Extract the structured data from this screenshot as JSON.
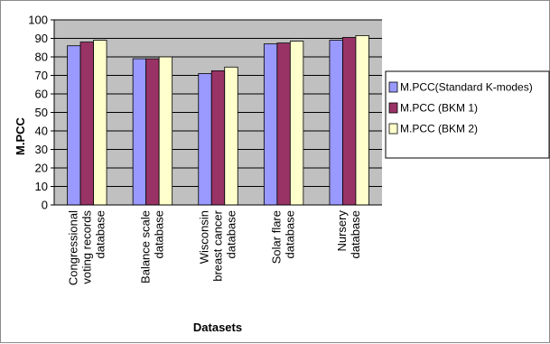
{
  "chart_data": {
    "type": "bar",
    "title": "",
    "xlabel": "Datasets",
    "ylabel": "M.PCC",
    "ylim": [
      0,
      100
    ],
    "yticks": [
      0,
      10,
      20,
      30,
      40,
      50,
      60,
      70,
      80,
      90,
      100
    ],
    "grid": true,
    "legend_position": "right",
    "categories": [
      [
        "Congressional",
        "voting records",
        "database"
      ],
      [
        "Balance scale",
        "database"
      ],
      [
        "Wisconsin",
        "breast cancer",
        "database"
      ],
      [
        "Solar flare",
        "database"
      ],
      [
        "Nursery",
        "database"
      ]
    ],
    "series": [
      {
        "name": "M.PCC(Standard K-modes)",
        "color": "#9999ff",
        "values": [
          86,
          79,
          71,
          87,
          89
        ]
      },
      {
        "name": "M.PCC (BKM 1)",
        "color": "#993366",
        "values": [
          88,
          79,
          72.5,
          87.5,
          90.5
        ]
      },
      {
        "name": "M.PCC (BKM 2)",
        "color": "#ffffcc",
        "values": [
          89,
          80,
          74.5,
          88.5,
          91.5
        ]
      }
    ],
    "colors": {
      "plot_background": "#c0c0c0",
      "grid": "#000000",
      "bar_outline": "#000000"
    }
  }
}
